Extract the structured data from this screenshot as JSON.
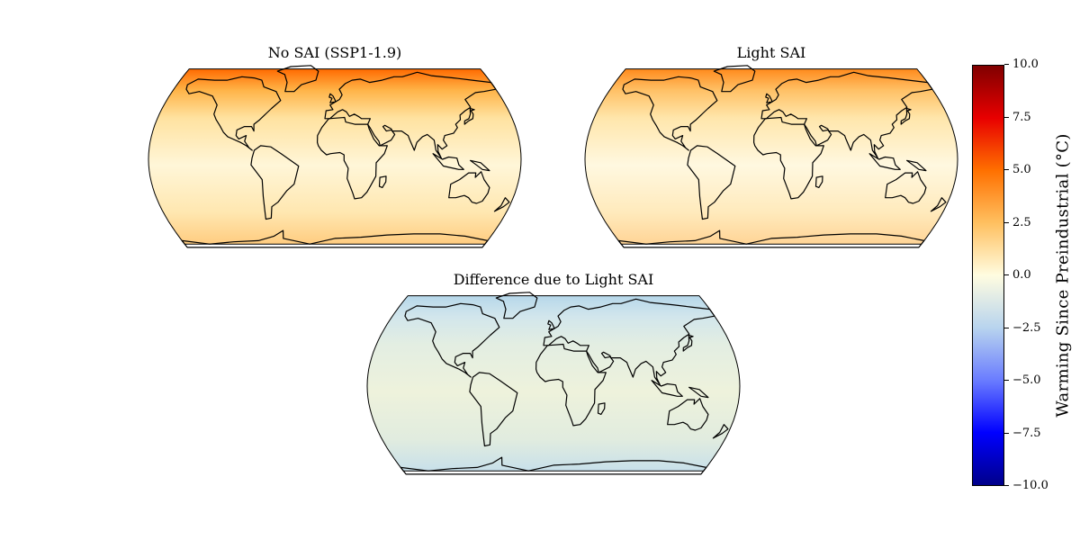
{
  "figure": {
    "maps": [
      {
        "id": "no-sai",
        "title": "No SAI (SSP1-1.9)",
        "projection": "Robinson",
        "colormap": "warm",
        "fill_colors": [
          "#ff6a00",
          "#ffb347",
          "#ffe2a0",
          "#fff6d8",
          "#ffe7b0",
          "#ffcc80"
        ]
      },
      {
        "id": "light-sai",
        "title": "Light SAI",
        "projection": "Robinson",
        "colormap": "warm",
        "fill_colors": [
          "#ff8a1c",
          "#ffc065",
          "#ffe6ab",
          "#fff8e0",
          "#ffeabc",
          "#ffd496"
        ]
      },
      {
        "id": "difference",
        "title": "Difference due to Light SAI",
        "projection": "Robinson",
        "colormap": "cool",
        "fill_colors": [
          "#b6d7ea",
          "#d2e6ec",
          "#e3eee2",
          "#eef2dc",
          "#e1ecdf",
          "#c8e0ea"
        ]
      }
    ],
    "colorbar": {
      "label": "Warming Since Preindustrial (°C)",
      "ticks": [
        "10.0",
        "7.5",
        "5.0",
        "2.5",
        "0.0",
        "−2.5",
        "−5.0",
        "−7.5",
        "−10.0"
      ],
      "range": [
        -10,
        10
      ],
      "gradient_colors": [
        "#800000",
        "#e80000",
        "#ff7000",
        "#ffc060",
        "#fffce0",
        "#b8d4ee",
        "#6a7cff",
        "#0000ff",
        "#00008a"
      ]
    }
  }
}
